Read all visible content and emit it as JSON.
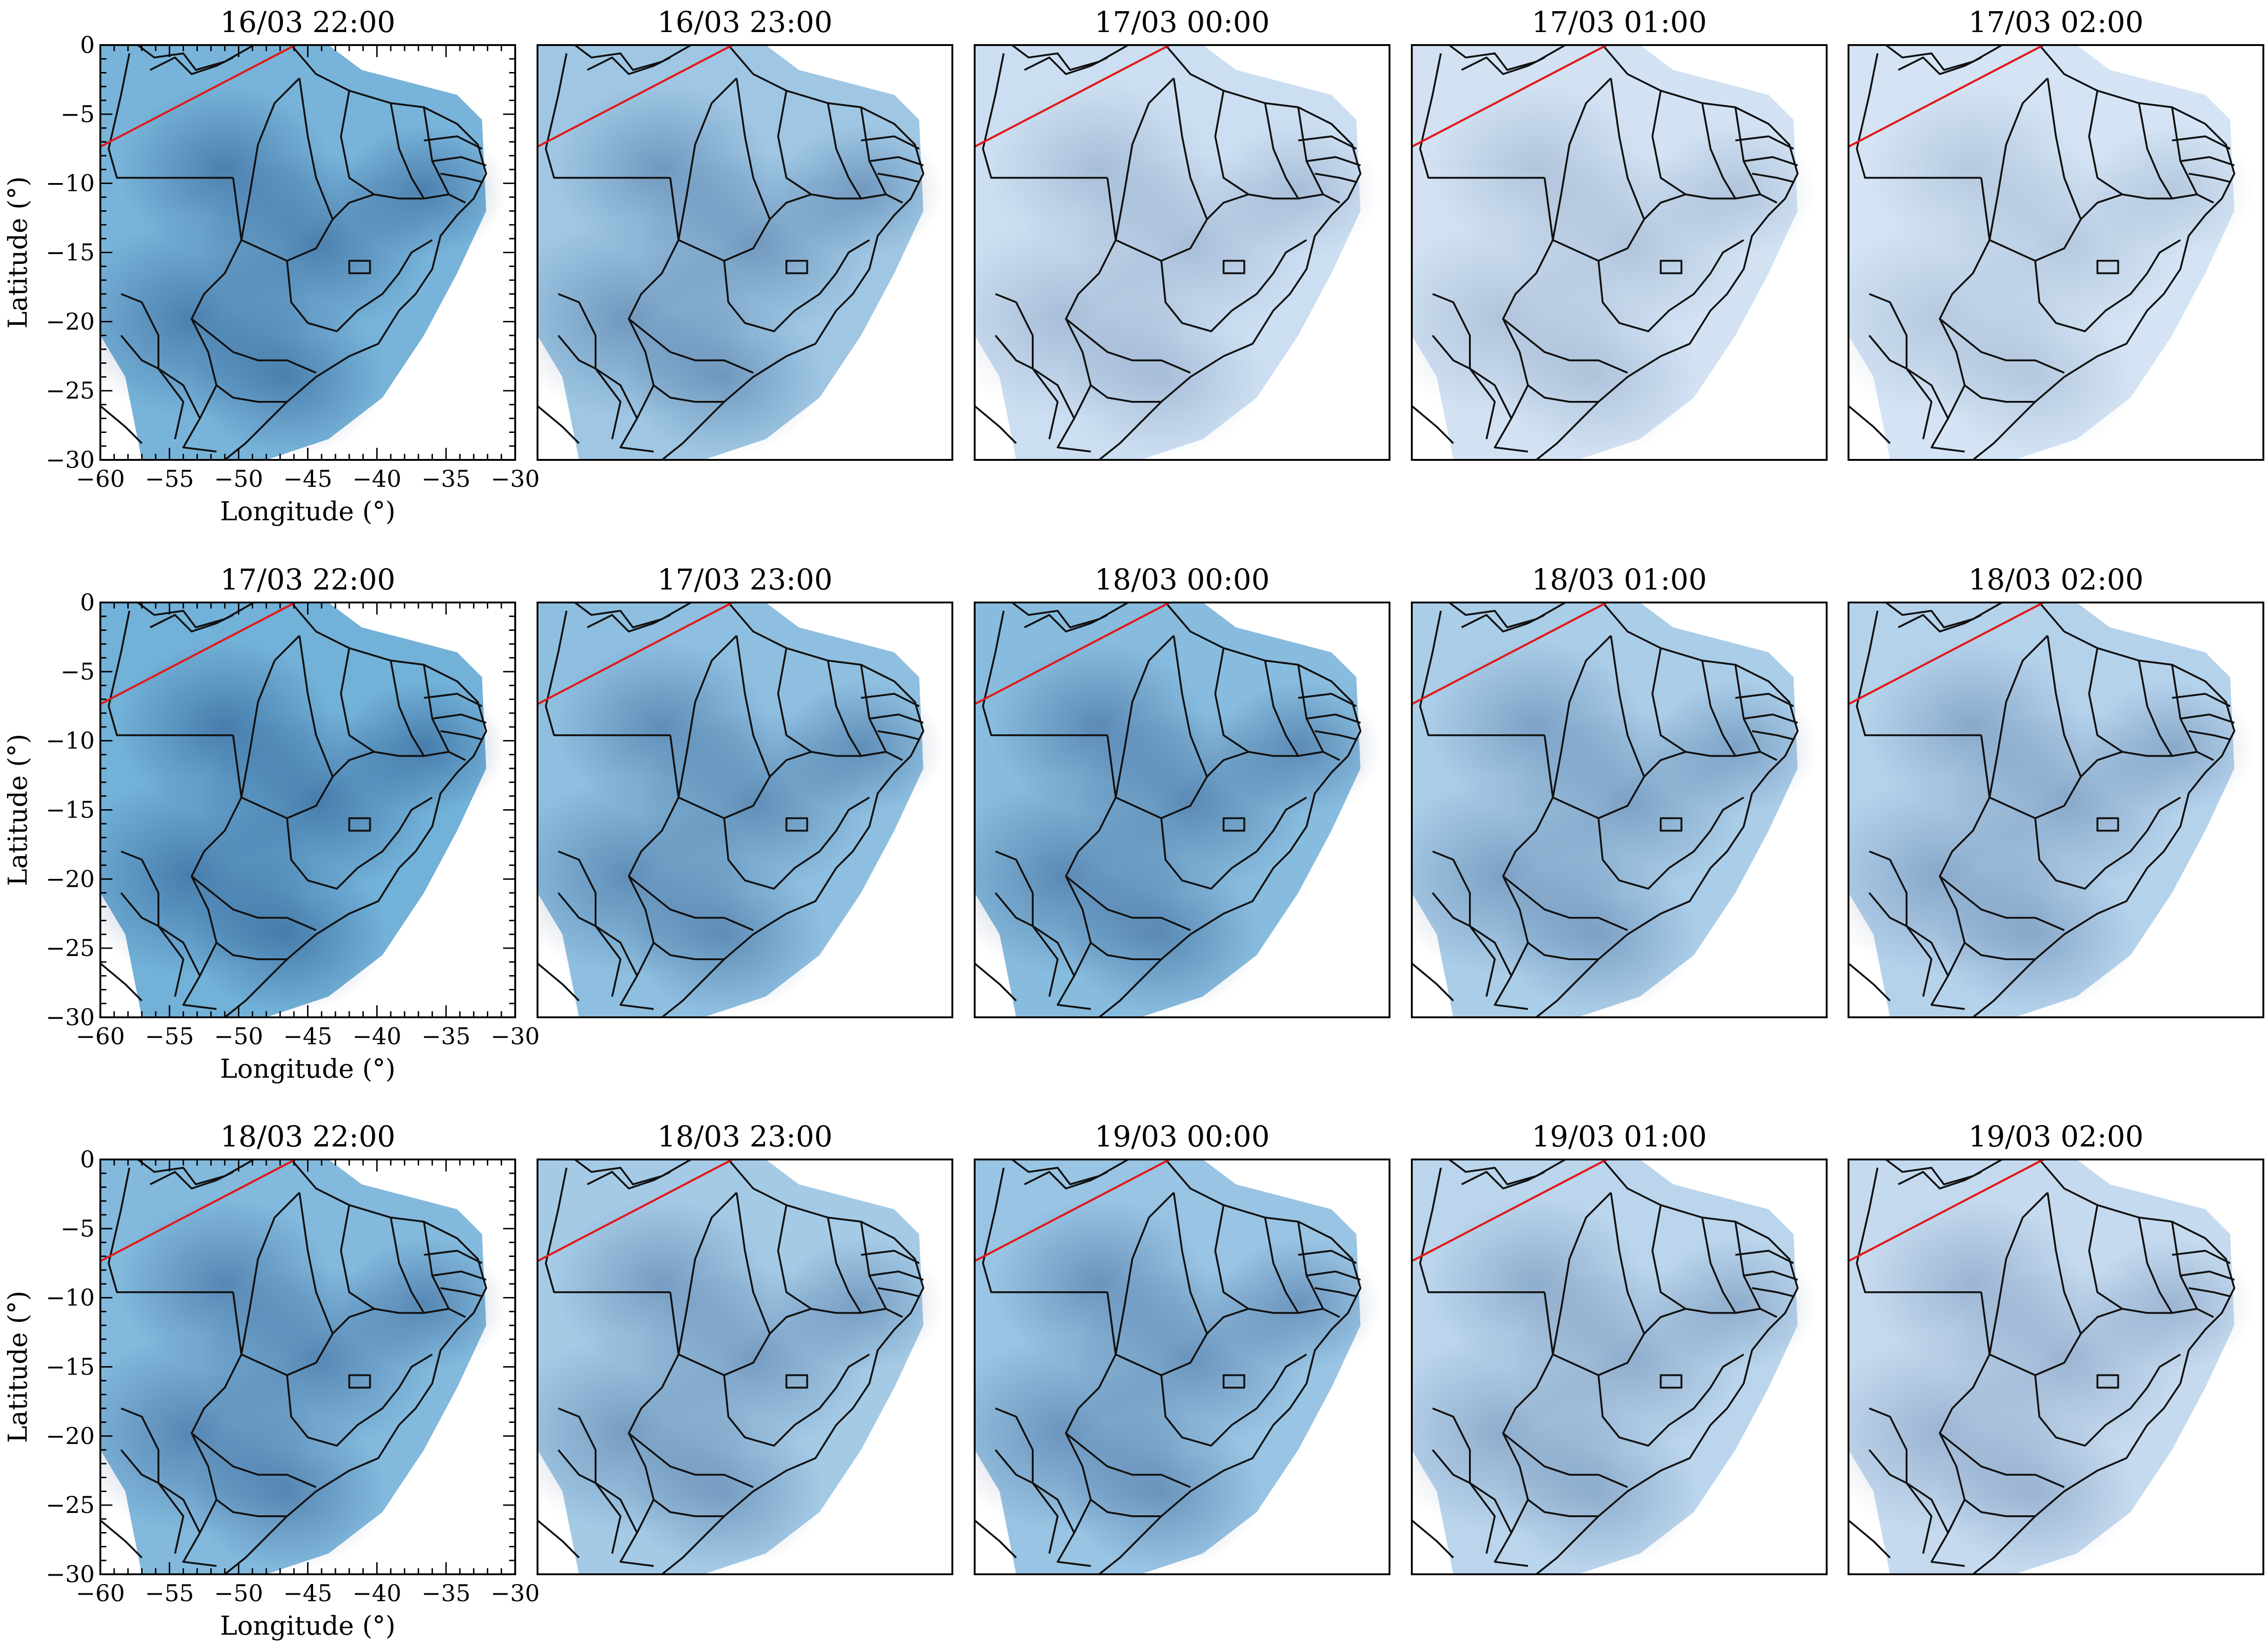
{
  "axes": {
    "x_label": "Longitude (°)",
    "y_label": "Latitude (°)",
    "x_ticks": [
      "−60",
      "−55",
      "−50",
      "−45",
      "−40",
      "−35",
      "−30"
    ],
    "y_ticks": [
      "0",
      "−5",
      "−10",
      "−15",
      "−20",
      "−25",
      "−30"
    ],
    "xlim": [
      -60,
      -30
    ],
    "ylim": [
      -30,
      0
    ]
  },
  "colors": {
    "scale": "Blues",
    "line": "#e11a1a",
    "boundaries": "#111111"
  },
  "panels": [
    {
      "title": "16/03 22:00",
      "intensity": 0.62
    },
    {
      "title": "16/03 23:00",
      "intensity": 0.48
    },
    {
      "title": "17/03 00:00",
      "intensity": 0.3
    },
    {
      "title": "17/03 01:00",
      "intensity": 0.26
    },
    {
      "title": "17/03 02:00",
      "intensity": 0.24
    },
    {
      "title": "17/03 22:00",
      "intensity": 0.64
    },
    {
      "title": "17/03 23:00",
      "intensity": 0.54
    },
    {
      "title": "18/03 00:00",
      "intensity": 0.56
    },
    {
      "title": "18/03 01:00",
      "intensity": 0.44
    },
    {
      "title": "18/03 02:00",
      "intensity": 0.4
    },
    {
      "title": "18/03 22:00",
      "intensity": 0.58
    },
    {
      "title": "18/03 23:00",
      "intensity": 0.46
    },
    {
      "title": "19/03 00:00",
      "intensity": 0.5
    },
    {
      "title": "19/03 01:00",
      "intensity": 0.38
    },
    {
      "title": "19/03 02:00",
      "intensity": 0.34
    }
  ]
}
